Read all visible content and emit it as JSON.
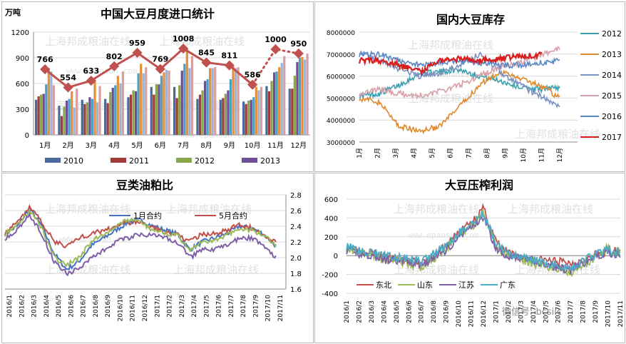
{
  "watermark": {
    "cn": "上海邦成粮油在线",
    "en": "www.epansun.com",
    "wechat": "微信号: bcsiic"
  },
  "chart_data": [
    {
      "id": "imports",
      "type": "bar",
      "title": "中国大豆月度进口统计",
      "ylabel": "万吨",
      "ylim": [
        0,
        1200
      ],
      "yticks": [
        0,
        300,
        600,
        900,
        1200
      ],
      "categories": [
        "1月",
        "2月",
        "3月",
        "4月",
        "5月",
        "6月",
        "7月",
        "8月",
        "9月",
        "10月",
        "11月",
        "12月"
      ],
      "series": [
        {
          "name": "2010",
          "color": "#4a6b9a",
          "values": [
            410,
            340,
            410,
            420,
            440,
            560,
            560,
            420,
            410,
            390,
            570,
            540
          ]
        },
        {
          "name": "2011",
          "color": "#a33b3b",
          "values": [
            450,
            220,
            360,
            370,
            470,
            470,
            430,
            470,
            430,
            360,
            510,
            540
          ]
        },
        {
          "name": "2012",
          "color": "#89a64a",
          "values": [
            470,
            330,
            380,
            500,
            520,
            590,
            580,
            520,
            480,
            400,
            630,
            690
          ]
        },
        {
          "name": "2013",
          "color": "#6e4f96",
          "values": [
            480,
            400,
            440,
            550,
            510,
            590,
            750,
            630,
            520,
            410,
            730,
            850
          ]
        },
        {
          "name": "",
          "color": "#4aa3c7",
          "values": [
            590,
            420,
            420,
            580,
            720,
            690,
            830,
            650,
            650,
            440,
            740,
            900
          ]
        },
        {
          "name": "",
          "color": "#e6913a",
          "values": [
            780,
            510,
            640,
            690,
            830,
            730,
            1000,
            780,
            800,
            560,
            790,
            910
          ]
        },
        {
          "name": "",
          "color": "#9fb4d6",
          "values": [
            740,
            320,
            380,
            600,
            720,
            760,
            780,
            780,
            780,
            520,
            840,
            880
          ]
        },
        {
          "name": "",
          "color": "#d7a0a0",
          "values": [
            580,
            540,
            570,
            740,
            790,
            750,
            920,
            790,
            790,
            560,
            920,
            950
          ]
        }
      ],
      "line": {
        "color": "#c0504d",
        "values": [
          766,
          554,
          633,
          802,
          959,
          769,
          1008,
          845,
          811,
          586,
          1000,
          950
        ],
        "labels": [
          "766",
          "554",
          "633",
          "802",
          "959",
          "769",
          "1008",
          "845",
          "811",
          "586",
          "1000",
          "950"
        ],
        "dotted_from": 9
      }
    },
    {
      "id": "inventory",
      "type": "line",
      "title": "国内大豆库存",
      "ylim": [
        3000000,
        8000000
      ],
      "yticks": [
        "3000000",
        "4000000",
        "5000000",
        "6000000",
        "7000000",
        "8000000"
      ],
      "xticks": [
        "1月",
        "2月",
        "3月",
        "4月",
        "5月",
        "6月",
        "7月",
        "8月",
        "9月",
        "10月",
        "11月",
        "12月"
      ],
      "series": [
        {
          "name": "2012",
          "color": "#3aa0b0",
          "anchors": [
            5100000,
            5200000,
            5600000,
            6100000,
            6200000,
            6300000,
            6000000,
            5800000,
            5500000,
            5400000,
            5500000
          ]
        },
        {
          "name": "2013",
          "color": "#e08a2e",
          "anchors": [
            5000000,
            4800000,
            3700000,
            3500000,
            3700000,
            4600000,
            5600000,
            6200000,
            5900000,
            5600000,
            5000000
          ]
        },
        {
          "name": "2014",
          "color": "#7a92c0",
          "anchors": [
            7100000,
            6700000,
            6300000,
            6000000,
            6100000,
            6500000,
            7000000,
            6200000,
            5600000,
            5100000,
            4600000
          ]
        },
        {
          "name": "2015",
          "color": "#d8a0a8",
          "anchors": [
            5200000,
            5400000,
            5200000,
            5100000,
            5300000,
            5600000,
            6000000,
            6400000,
            6600000,
            6900000,
            7300000
          ]
        },
        {
          "name": "2016",
          "color": "#5a88c8",
          "anchors": [
            7000000,
            7000000,
            6700000,
            6500000,
            6600000,
            6700000,
            6600000,
            6500000,
            6500000,
            6600000,
            6700000
          ]
        },
        {
          "name": "2017",
          "color": "#d81e1e",
          "anchors": [
            6700000,
            6700000,
            6500000,
            6200000,
            6700000,
            6800000,
            6700000,
            6800000,
            6900000,
            7000000
          ]
        }
      ]
    },
    {
      "id": "oilmeal",
      "type": "line",
      "title": "豆类油粕比",
      "ylim": [
        1.6,
        2.8
      ],
      "yticks": [
        "1.6",
        "1.8",
        "2.0",
        "2.2",
        "2.4",
        "2.6",
        "2.8"
      ],
      "xticks": [
        "2016/1",
        "2016/2",
        "2016/3",
        "2016/4",
        "2016/5",
        "2016/6",
        "2016/7",
        "2016/8",
        "2016/9",
        "2016/10",
        "2016/11",
        "2016/12",
        "2017/1",
        "2017/2",
        "2017/3",
        "2017/4",
        "2017/5",
        "2017/6",
        "2017/7",
        "2017/8",
        "2017/9",
        "2017/10",
        "2017/11"
      ],
      "series": [
        {
          "name": "1月合约",
          "color": "#4472c4",
          "anchors": [
            2.3,
            2.4,
            2.62,
            2.4,
            2.05,
            1.85,
            1.95,
            2.15,
            2.25,
            2.35,
            2.45,
            2.48,
            2.4,
            2.35,
            2.3,
            2.1,
            2.2,
            2.25,
            2.3,
            2.4,
            2.38,
            2.3,
            2.15
          ]
        },
        {
          "name": "5月合约",
          "color": "#c0504d",
          "anchors": [
            2.32,
            2.45,
            2.65,
            2.45,
            2.2,
            2.15,
            2.25,
            2.3,
            2.35,
            2.4,
            2.45,
            2.45,
            2.38,
            2.32,
            2.3,
            2.2,
            2.3,
            2.3,
            2.35,
            2.42,
            2.38,
            2.3,
            2.2
          ]
        },
        {
          "name": "",
          "color": "#9bbb59",
          "anchors": [
            2.3,
            2.42,
            2.6,
            2.38,
            2.0,
            1.9,
            2.0,
            2.2,
            2.3,
            2.4,
            2.48,
            2.45,
            2.35,
            2.32,
            2.28,
            2.08,
            2.2,
            2.22,
            2.28,
            2.38,
            2.35,
            2.28,
            2.15
          ]
        },
        {
          "name": "",
          "color": "#7f5fa8",
          "anchors": [
            2.25,
            2.35,
            2.55,
            2.3,
            1.95,
            1.8,
            1.85,
            2.0,
            2.1,
            2.2,
            2.25,
            2.3,
            2.28,
            2.25,
            2.2,
            2.0,
            2.1,
            2.1,
            2.15,
            2.25,
            2.25,
            2.15,
            2.0
          ]
        }
      ]
    },
    {
      "id": "crushmargin",
      "type": "line",
      "title": "大豆压榨利润",
      "ylim": [
        -400,
        600
      ],
      "yticks": [
        "-400",
        "-200",
        "0",
        "200",
        "400",
        "600"
      ],
      "xticks": [
        "2016/1",
        "2016/2",
        "2016/3",
        "2016/4",
        "2016/5",
        "2016/6",
        "2016/7",
        "2016/8",
        "2016/9",
        "2016/10",
        "2016/11",
        "2016/12",
        "2017/1",
        "2017/2",
        "2017/3",
        "2017/4",
        "2017/5",
        "2017/6",
        "2017/7",
        "2017/8",
        "2017/9",
        "2017/10",
        "2017/11"
      ],
      "series": [
        {
          "name": "东北",
          "color": "#c0504d",
          "anchors": [
            100,
            60,
            40,
            -20,
            -40,
            -60,
            -80,
            0,
            100,
            250,
            350,
            500,
            150,
            20,
            -20,
            -40,
            -50,
            -60,
            -80,
            -50,
            0,
            50,
            50
          ]
        },
        {
          "name": "山东",
          "color": "#9bbb59",
          "anchors": [
            80,
            40,
            20,
            -40,
            -60,
            -80,
            -120,
            -40,
            80,
            220,
            300,
            450,
            100,
            0,
            -40,
            -80,
            -120,
            -140,
            -180,
            -100,
            -20,
            80,
            40
          ]
        },
        {
          "name": "江苏",
          "color": "#7f5fa8",
          "anchors": [
            60,
            20,
            0,
            -40,
            -60,
            -60,
            -100,
            -20,
            60,
            200,
            300,
            420,
            80,
            0,
            -30,
            -60,
            -100,
            -120,
            -160,
            -80,
            -10,
            40,
            0
          ]
        },
        {
          "name": "广东",
          "color": "#4bacc6",
          "anchors": [
            100,
            60,
            40,
            0,
            -20,
            -40,
            -60,
            20,
            100,
            240,
            320,
            460,
            120,
            20,
            -10,
            -50,
            -80,
            -100,
            -140,
            -60,
            10,
            60,
            30
          ]
        }
      ]
    }
  ]
}
